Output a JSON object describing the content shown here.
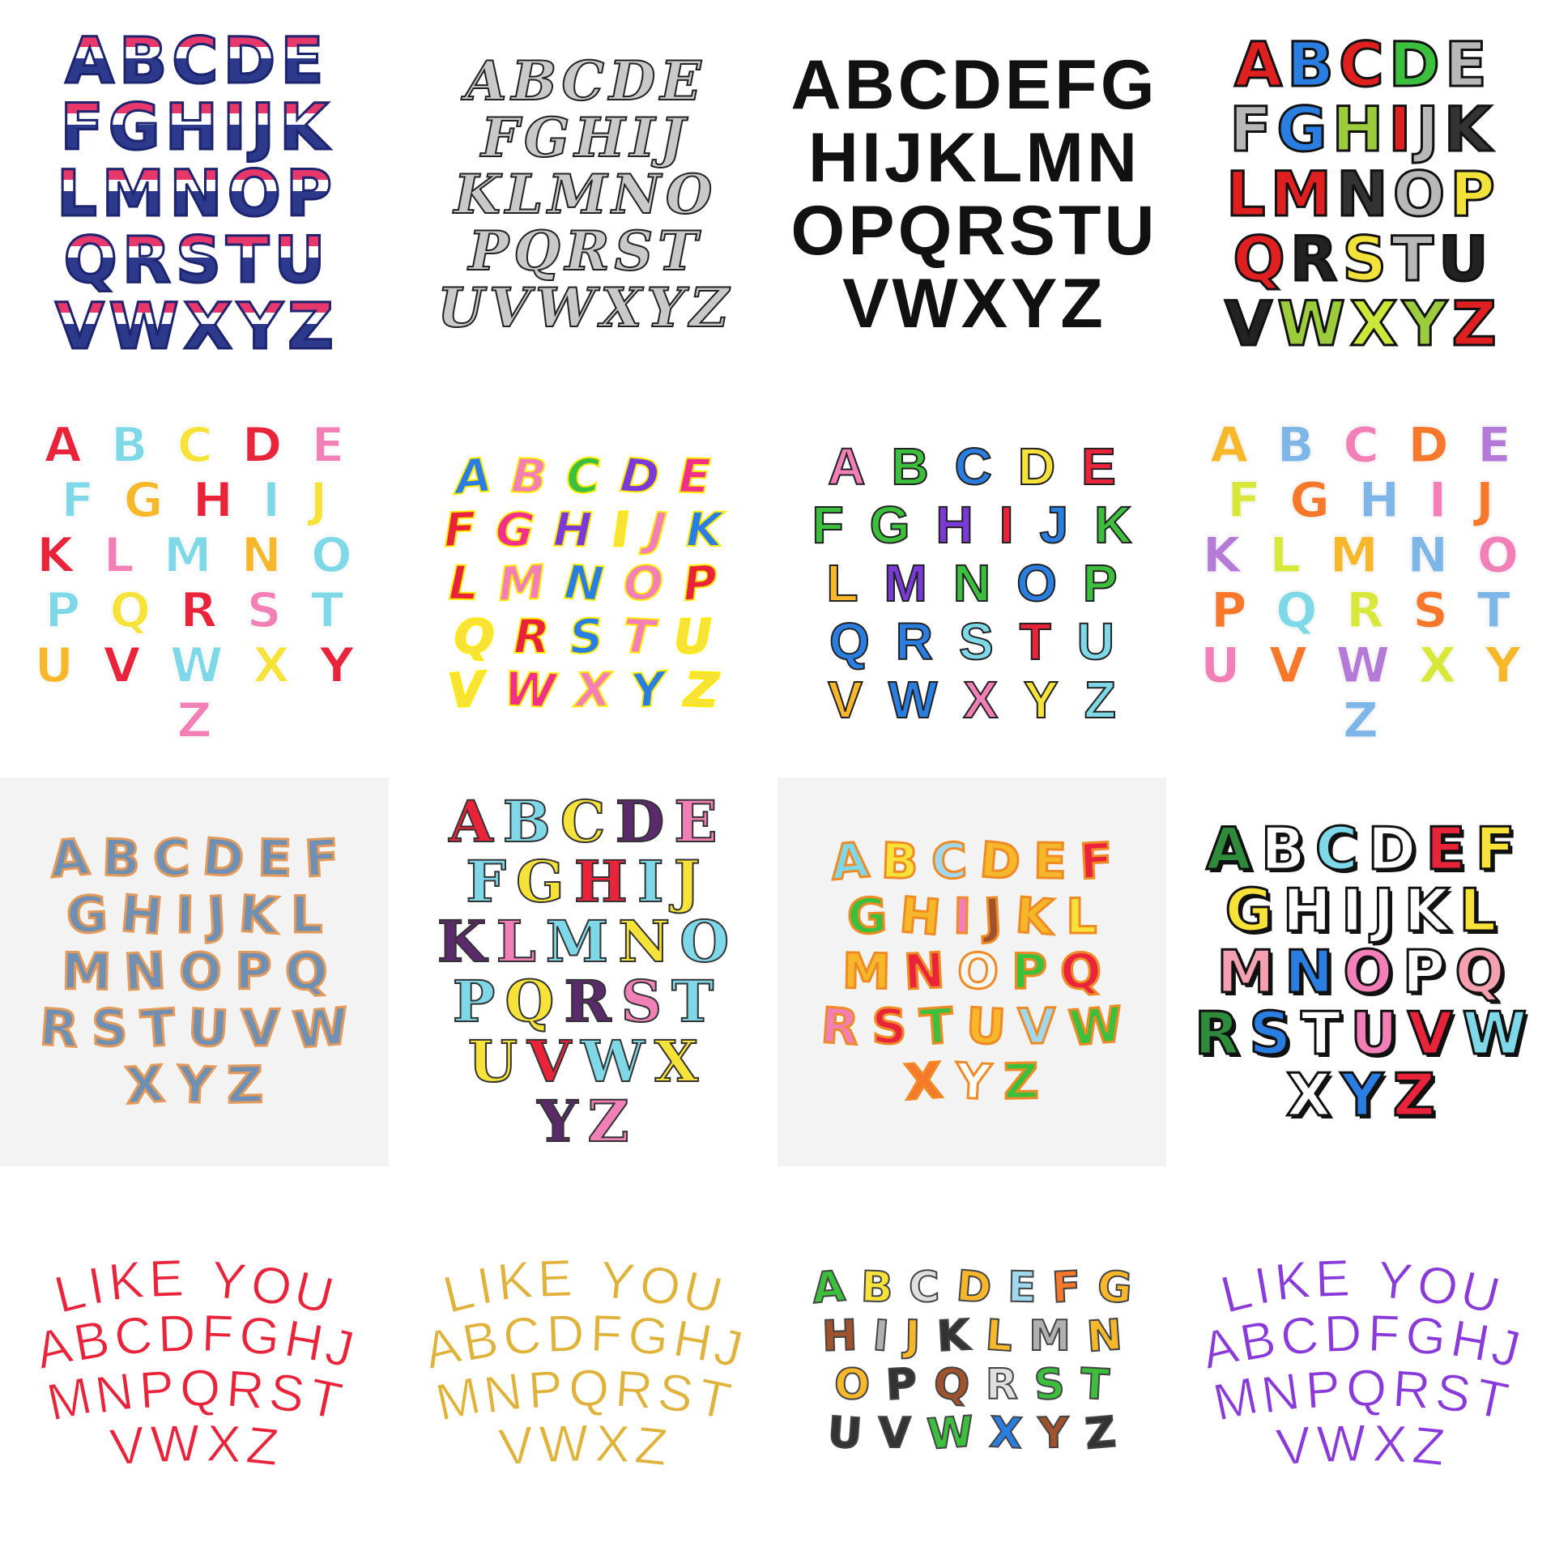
{
  "tiles": [
    {
      "style": "sequin",
      "bg": "white",
      "rows": [
        [
          "A",
          "B",
          "C",
          "D",
          "E"
        ],
        [
          "F",
          "G",
          "H",
          "I",
          "J",
          "K"
        ],
        [
          "L",
          "M",
          "N",
          "O",
          "P"
        ],
        [
          "Q",
          "R",
          "S",
          "T",
          "U"
        ],
        [
          "V",
          "W",
          "X",
          "Y",
          "Z"
        ]
      ],
      "colors": [
        "#2d3a8c"
      ]
    },
    {
      "style": "gothic",
      "bg": "white",
      "rows": [
        [
          "A",
          "B",
          "C",
          "D",
          "E"
        ],
        [
          "F",
          "G",
          "H",
          "I",
          "J"
        ],
        [
          "K",
          "L",
          "M",
          "N",
          "O"
        ],
        [
          "P",
          "Q",
          "R",
          "S",
          "T"
        ],
        [
          "U",
          "V",
          "W",
          "X",
          "Y",
          "Z"
        ]
      ],
      "colors": [
        "#c9c9c9"
      ]
    },
    {
      "style": "black",
      "bg": "white",
      "rows": [
        [
          "A",
          "B",
          "C",
          "D",
          "E",
          "F",
          "G"
        ],
        [
          "H",
          "I",
          "J",
          "K",
          "L",
          "M",
          "N"
        ],
        [
          "O",
          "P",
          "Q",
          "R",
          "S",
          "T",
          "U"
        ],
        [
          "V",
          "W",
          "X",
          "Y",
          "Z"
        ]
      ],
      "colors": [
        "#111111"
      ]
    },
    {
      "style": "varsity",
      "bg": "white",
      "rows": [
        [
          "A",
          "B",
          "C",
          "D",
          "E"
        ],
        [
          "F",
          "G",
          "H",
          "I",
          "J",
          "K"
        ],
        [
          "L",
          "M",
          "N",
          "O",
          "P"
        ],
        [
          "Q",
          "R",
          "S",
          "T",
          "U"
        ],
        [
          "V",
          "W",
          "X",
          "Y",
          "Z"
        ]
      ],
      "colors": [
        "#e02020",
        "#2a7de1",
        "#e02020",
        "#3cbf3c",
        "#b8b8b8",
        "#b8b8b8",
        "#2a7de1",
        "#9ccc3c",
        "#e02020",
        "#b8b8b8",
        "#333333",
        "#e02020",
        "#e02020",
        "#333333",
        "#b8b8b8",
        "#f2e23a",
        "#e02020",
        "#222222",
        "#f2e23a",
        "#b8b8b8",
        "#222222",
        "#222222",
        "#9ccc3c",
        "#c9e83a",
        "#9ccc3c",
        "#e02020"
      ]
    },
    {
      "style": "round",
      "bg": "white",
      "rows": [
        [
          "A",
          "B",
          "C",
          "D",
          "E"
        ],
        [
          "F",
          "G",
          "H",
          "I",
          "J"
        ],
        [
          "K",
          "L",
          "M",
          "N",
          "O"
        ],
        [
          "P",
          "Q",
          "R",
          "S",
          "T"
        ],
        [
          "U",
          "V",
          "W",
          "X",
          "Y"
        ],
        [
          "Z"
        ]
      ],
      "colors": [
        "#e8233a",
        "#7fd8e8",
        "#f7e23a",
        "#e8233a",
        "#f27fb6",
        "#7fd8e8",
        "#f7b72a",
        "#e8233a",
        "#7fd8e8",
        "#f7e23a",
        "#e8233a",
        "#f27fb6",
        "#7fd8e8",
        "#f7b72a",
        "#7fd8e8",
        "#7fd8e8",
        "#f7e23a",
        "#e8233a",
        "#f27fb6",
        "#7fd8e8",
        "#f7b72a",
        "#e8233a",
        "#7fd8e8",
        "#f7e23a",
        "#e8233a",
        "#f27fb6"
      ]
    },
    {
      "style": "cartoon",
      "bg": "white",
      "rows": [
        [
          "A",
          "B",
          "C",
          "D",
          "E"
        ],
        [
          "F",
          "G",
          "H",
          "I",
          "J",
          "K"
        ],
        [
          "L",
          "M",
          "N",
          "O",
          "P"
        ],
        [
          "Q",
          "R",
          "S",
          "T",
          "U"
        ],
        [
          "V",
          "W",
          "X",
          "Y",
          "Z"
        ]
      ],
      "colors": [
        "#2a7de1",
        "#f27fb6",
        "#3cbf3c",
        "#7a3ad8",
        "#f2308a",
        "#e8233a",
        "#f2308a",
        "#7a3ad8",
        "#f7e23a",
        "#f27fb6",
        "#2a7de1",
        "#e8233a",
        "#f27fb6",
        "#2a7de1",
        "#f27fb6",
        "#e8233a",
        "#f7e23a",
        "#e8233a",
        "#2a7de1",
        "#f27fb6",
        "#f7e23a",
        "#f7e23a",
        "#f2308a",
        "#f27fb6",
        "#2a7de1",
        "#f7e23a"
      ]
    },
    {
      "style": "outline",
      "bg": "white",
      "rows": [
        [
          "A",
          "B",
          "C",
          "D",
          "E"
        ],
        [
          "F",
          "G",
          "H",
          "I",
          "J",
          "K"
        ],
        [
          "L",
          "M",
          "N",
          "O",
          "P"
        ],
        [
          "Q",
          "R",
          "S",
          "T",
          "U"
        ],
        [
          "V",
          "W",
          "X",
          "Y",
          "Z"
        ]
      ],
      "colors": [
        "#f27fb6",
        "#3cbf3c",
        "#2a7de1",
        "#f7e23a",
        "#e8233a",
        "#3cbf3c",
        "#3cbf3c",
        "#7a3ad8",
        "#e8233a",
        "#2a7de1",
        "#3cbf3c",
        "#f7b72a",
        "#7a3ad8",
        "#3cbf3c",
        "#2a7de1",
        "#3cbf3c",
        "#2a7de1",
        "#2a7de1",
        "#7fd8e8",
        "#e8233a",
        "#7fd8e8",
        "#f7b72a",
        "#2a7de1",
        "#f27fb6",
        "#f7e23a",
        "#7fd8e8"
      ]
    },
    {
      "style": "pastel",
      "bg": "white",
      "rows": [
        [
          "A",
          "B",
          "C",
          "D",
          "E"
        ],
        [
          "F",
          "G",
          "H",
          "I",
          "J"
        ],
        [
          "K",
          "L",
          "M",
          "N",
          "O"
        ],
        [
          "P",
          "Q",
          "R",
          "S",
          "T"
        ],
        [
          "U",
          "V",
          "W",
          "X",
          "Y"
        ],
        [
          "Z"
        ]
      ],
      "colors": [
        "#f7b72a",
        "#7fb6e8",
        "#f27fb6",
        "#f7782a",
        "#b57ad8",
        "#d8e83a",
        "#f7782a",
        "#7fb6e8",
        "#f27fb6",
        "#f7782a",
        "#b57ad8",
        "#d8e83a",
        "#f7b72a",
        "#7fb6e8",
        "#f27fb6",
        "#f7782a",
        "#7fd8e8",
        "#d8e83a",
        "#f7782a",
        "#7fb6e8",
        "#f27fb6",
        "#f7782a",
        "#b57ad8",
        "#d8e83a",
        "#f7b72a",
        "#7fb6e8"
      ]
    },
    {
      "style": "denim",
      "bg": "grey",
      "rows": [
        [
          "A",
          "B",
          "C",
          "D",
          "E",
          "F"
        ],
        [
          "G",
          "H",
          "I",
          "J",
          "K",
          "L"
        ],
        [
          "M",
          "N",
          "O",
          "P",
          "Q"
        ],
        [
          "R",
          "S",
          "T",
          "U",
          "V",
          "W"
        ],
        [
          "X",
          "Y",
          "Z"
        ]
      ],
      "colors": [
        "#6f8fb3"
      ]
    },
    {
      "style": "bubble",
      "bg": "white",
      "rows": [
        [
          "A",
          "B",
          "C",
          "D",
          "E"
        ],
        [
          "F",
          "G",
          "H",
          "I",
          "J"
        ],
        [
          "K",
          "L",
          "M",
          "N",
          "O"
        ],
        [
          "P",
          "Q",
          "R",
          "S",
          "T"
        ],
        [
          "U",
          "V",
          "W",
          "X"
        ],
        [
          "Y",
          "Z"
        ]
      ],
      "colors": [
        "#e8233a",
        "#7fd8e8",
        "#f7e23a",
        "#5a2a6a",
        "#f27fb6",
        "#7fd8e8",
        "#f7e23a",
        "#e8233a",
        "#7fd8e8",
        "#f7e23a",
        "#5a2a6a",
        "#f27fb6",
        "#7fd8e8",
        "#f7e23a",
        "#7fd8e8",
        "#7fd8e8",
        "#f7e23a",
        "#5a2a6a",
        "#f27fb6",
        "#7fd8e8",
        "#f7e23a",
        "#e8233a",
        "#7fd8e8",
        "#f7e23a",
        "#5a2a6a",
        "#f27fb6"
      ]
    },
    {
      "style": "kids",
      "bg": "grey",
      "rows": [
        [
          "A",
          "B",
          "C",
          "D",
          "E",
          "F"
        ],
        [
          "G",
          "H",
          "I",
          "J",
          "K",
          "L"
        ],
        [
          "M",
          "N",
          "O",
          "P",
          "Q"
        ],
        [
          "R",
          "S",
          "T",
          "U",
          "V",
          "W"
        ],
        [
          "X",
          "Y",
          "Z"
        ]
      ],
      "colors": [
        "#7fd8e8",
        "#f7e23a",
        "#a0d8f0",
        "#f7b72a",
        "#f7b72a",
        "#e8233a",
        "#3cbf3c",
        "#f7b72a",
        "#f27fb6",
        "#a0522d",
        "#f7b72a",
        "#f7e23a",
        "#f7b72a",
        "#e8233a",
        "#f7f7f7",
        "#3cbf3c",
        "#e8233a",
        "#f27fb6",
        "#e8233a",
        "#3cbf3c",
        "#f7b72a",
        "#a0d8f0",
        "#3cbf3c",
        "#f7782a",
        "#ffffff",
        "#3cbf3c"
      ]
    },
    {
      "style": "shadow",
      "bg": "white",
      "rows": [
        [
          "A",
          "B",
          "C",
          "D",
          "E",
          "F"
        ],
        [
          "G",
          "H",
          "I",
          "J",
          "K",
          "L"
        ],
        [
          "M",
          "N",
          "O",
          "P",
          "Q"
        ],
        [
          "R",
          "S",
          "T",
          "U",
          "V",
          "W"
        ],
        [
          "X",
          "Y",
          "Z"
        ]
      ],
      "colors": [
        "#2e8b3c",
        "#ffffff",
        "#7fd8e8",
        "#ffffff",
        "#e8233a",
        "#f7e23a",
        "#f7e23a",
        "#ffffff",
        "#ffffff",
        "#ffffff",
        "#ffffff",
        "#f7e23a",
        "#f4a0b0",
        "#2a7de1",
        "#f27fb6",
        "#ffffff",
        "#f4a0b0",
        "#2e8b3c",
        "#2a7de1",
        "#ffffff",
        "#f27fb6",
        "#e8233a",
        "#7fd8e8",
        "#ffffff",
        "#2a7de1",
        "#e8233a"
      ]
    },
    {
      "style": "arch",
      "bg": "white",
      "rows": [
        [
          "L",
          "I",
          "K",
          "E",
          " ",
          "Y",
          "O",
          "U"
        ],
        [
          "A",
          "B",
          "C",
          "D",
          "F",
          "G",
          "H",
          "J"
        ],
        [
          "M",
          "N",
          "P",
          "Q",
          "R",
          "S",
          "T"
        ],
        [
          "V",
          "W",
          "X",
          "Z"
        ]
      ],
      "colors": [
        "#e8233a"
      ]
    },
    {
      "style": "arch",
      "bg": "white",
      "rows": [
        [
          "L",
          "I",
          "K",
          "E",
          " ",
          "Y",
          "O",
          "U"
        ],
        [
          "A",
          "B",
          "C",
          "D",
          "F",
          "G",
          "H",
          "J"
        ],
        [
          "M",
          "N",
          "P",
          "Q",
          "R",
          "S",
          "T"
        ],
        [
          "V",
          "W",
          "X",
          "Z"
        ]
      ],
      "colors": [
        "#e0b23a"
      ]
    },
    {
      "style": "animal",
      "bg": "white",
      "rows": [
        [
          "A",
          "B",
          "C",
          "D",
          "E",
          "F",
          "G"
        ],
        [
          "H",
          "I",
          "J",
          "K",
          "L",
          "M",
          "N"
        ],
        [
          "O",
          "P",
          "Q",
          "R",
          "S",
          "T"
        ],
        [
          "U",
          "V",
          "W",
          "X",
          "Y",
          "Z"
        ]
      ],
      "colors": [
        "#3cbf3c",
        "#f7e23a",
        "#e0e0e0",
        "#f7b72a",
        "#a0d8f0",
        "#f7782a",
        "#f7b72a",
        "#a0522d",
        "#b0b0b0",
        "#f7b72a",
        "#333333",
        "#f7b72a",
        "#b0b0b0",
        "#f7b72a",
        "#f7b72a",
        "#333333",
        "#a0522d",
        "#e0e0e0",
        "#3cbf3c",
        "#3cbf3c",
        "#333333",
        "#333333",
        "#3cbf3c",
        "#2a7de1",
        "#a0522d",
        "#333333"
      ]
    },
    {
      "style": "arch",
      "bg": "white",
      "rows": [
        [
          "L",
          "I",
          "K",
          "E",
          " ",
          "Y",
          "O",
          "U"
        ],
        [
          "A",
          "B",
          "C",
          "D",
          "F",
          "G",
          "H",
          "J"
        ],
        [
          "M",
          "N",
          "P",
          "Q",
          "R",
          "S",
          "T"
        ],
        [
          "V",
          "W",
          "X",
          "Z"
        ]
      ],
      "colors": [
        "#8a3ad8"
      ]
    }
  ]
}
